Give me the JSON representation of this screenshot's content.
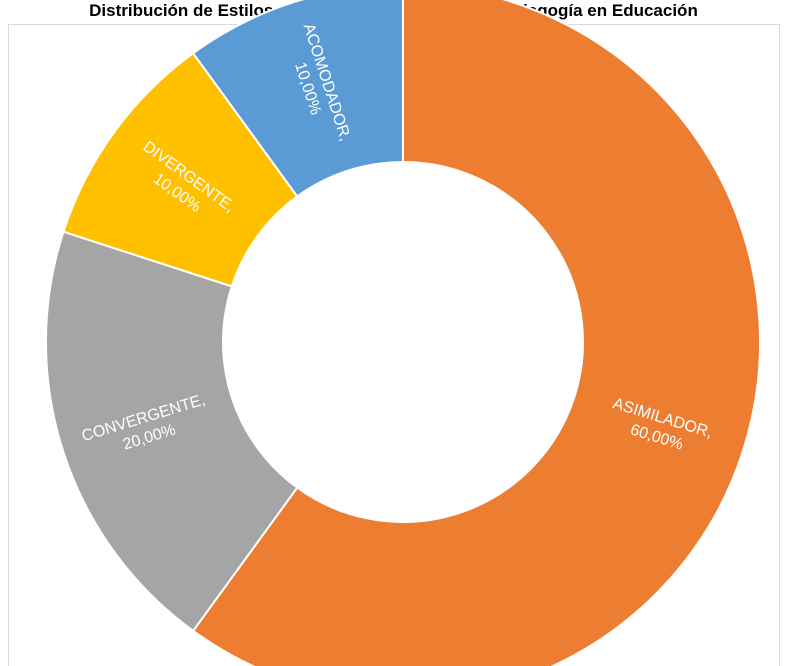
{
  "chart_data": {
    "type": "donut",
    "title": "Distribución de Estilos de Aprendizaje Escuela de Pedagogía en Educación",
    "legend": "none",
    "slices": [
      {
        "name": "ACOMODADOR",
        "value": 10,
        "label": "ACOMODADOR,",
        "value_label": "10,00%",
        "color": "#5b9bd5"
      },
      {
        "name": "ASIMILADOR",
        "value": 60,
        "label": "ASIMILADOR,",
        "value_label": "60,00%",
        "color": "#ed7d31"
      },
      {
        "name": "CONVERGENTE",
        "value": 20,
        "label": "CONVERGENTE,",
        "value_label": "20,00%",
        "color": "#a5a5a5"
      },
      {
        "name": "DIVERGENTE",
        "value": 10,
        "label": "DIVERGENTE,",
        "value_label": "10,00%",
        "color": "#ffc000"
      }
    ],
    "order": [
      "ASIMILADOR",
      "CONVERGENTE",
      "DIVERGENTE",
      "ACOMODADOR"
    ]
  }
}
